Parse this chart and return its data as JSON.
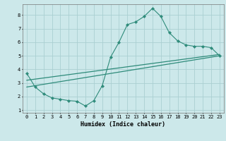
{
  "title": "",
  "xlabel": "Humidex (Indice chaleur)",
  "ylabel": "",
  "bg_color": "#cce8ea",
  "grid_color": "#aacfd2",
  "line_color": "#2e8b7a",
  "xlim": [
    -0.5,
    23.5
  ],
  "ylim": [
    0.8,
    8.8
  ],
  "xticks": [
    0,
    1,
    2,
    3,
    4,
    5,
    6,
    7,
    8,
    9,
    10,
    11,
    12,
    13,
    14,
    15,
    16,
    17,
    18,
    19,
    20,
    21,
    22,
    23
  ],
  "yticks": [
    1,
    2,
    3,
    4,
    5,
    6,
    7,
    8
  ],
  "line1_x": [
    0,
    1,
    2,
    3,
    4,
    5,
    6,
    7,
    8,
    9,
    10,
    11,
    12,
    13,
    14,
    15,
    16,
    17,
    18,
    19,
    20,
    21,
    22,
    23
  ],
  "line1_y": [
    3.7,
    2.7,
    2.2,
    1.9,
    1.8,
    1.7,
    1.65,
    1.3,
    1.7,
    2.8,
    4.9,
    6.0,
    7.3,
    7.5,
    7.9,
    8.5,
    7.9,
    6.7,
    6.1,
    5.8,
    5.7,
    5.7,
    5.6,
    5.0
  ],
  "line2_x": [
    0,
    23
  ],
  "line2_y": [
    3.2,
    5.1
  ],
  "line3_x": [
    0,
    23
  ],
  "line3_y": [
    2.7,
    5.0
  ]
}
